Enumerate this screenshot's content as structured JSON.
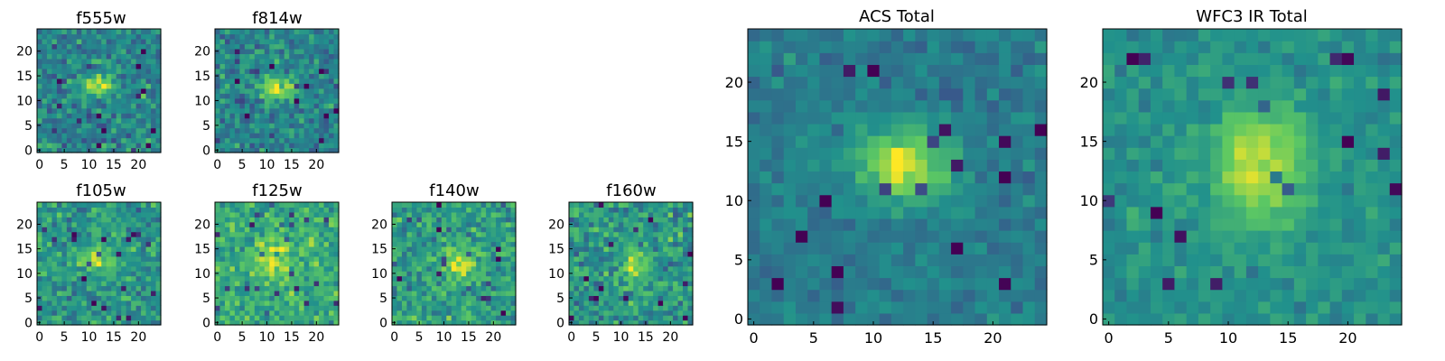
{
  "figure": {
    "colormap": "viridis",
    "colormap_stops": [
      "#440154",
      "#3b528b",
      "#21918c",
      "#5ec962",
      "#fde725"
    ],
    "panel_count": 8
  },
  "chart_data": [
    {
      "type": "heatmap",
      "title": "f555w",
      "grid": false,
      "xlim": [
        0,
        24
      ],
      "ylim": [
        0,
        24
      ],
      "xticks": [
        0,
        5,
        10,
        15,
        20
      ],
      "yticks": [
        0,
        5,
        10,
        15,
        20
      ],
      "xtick_labels": [
        "0",
        "5",
        "10",
        "15",
        "20"
      ],
      "ytick_labels": [
        "0",
        "5",
        "10",
        "15",
        "20"
      ],
      "source_center": [
        12,
        13
      ],
      "source_size": [
        2.2,
        1.5
      ],
      "source_peak": 0.55,
      "noise_level": 0.6,
      "background": 0.45,
      "colormap": "viridis"
    },
    {
      "type": "heatmap",
      "title": "f814w",
      "grid": false,
      "xlim": [
        0,
        24
      ],
      "ylim": [
        0,
        24
      ],
      "xticks": [
        0,
        5,
        10,
        15,
        20
      ],
      "yticks": [
        0,
        5,
        10,
        15,
        20
      ],
      "xtick_labels": [
        "0",
        "5",
        "10",
        "15",
        "20"
      ],
      "ytick_labels": [
        "0",
        "5",
        "10",
        "15",
        "20"
      ],
      "source_center": [
        12.5,
        12.5
      ],
      "source_size": [
        2.5,
        1.6
      ],
      "source_peak": 0.5,
      "noise_level": 0.55,
      "background": 0.45,
      "colormap": "viridis"
    },
    {
      "type": "heatmap",
      "title": "f105w",
      "grid": false,
      "xlim": [
        0,
        24
      ],
      "ylim": [
        0,
        24
      ],
      "xticks": [
        0,
        5,
        10,
        15,
        20
      ],
      "yticks": [
        0,
        5,
        10,
        15,
        20
      ],
      "xtick_labels": [
        "0",
        "5",
        "10",
        "15",
        "20"
      ],
      "ytick_labels": [
        "0",
        "5",
        "10",
        "15",
        "20"
      ],
      "source_center": [
        11.5,
        13
      ],
      "source_size": [
        2.4,
        1.5
      ],
      "source_peak": 0.4,
      "noise_level": 0.55,
      "background": 0.52,
      "colormap": "viridis"
    },
    {
      "type": "heatmap",
      "title": "f125w",
      "grid": false,
      "xlim": [
        0,
        24
      ],
      "ylim": [
        0,
        24
      ],
      "xticks": [
        0,
        5,
        10,
        15,
        20
      ],
      "yticks": [
        0,
        5,
        10,
        15,
        20
      ],
      "xtick_labels": [
        "0",
        "5",
        "10",
        "15",
        "20"
      ],
      "ytick_labels": [
        "0",
        "5",
        "10",
        "15",
        "20"
      ],
      "source_center": [
        12,
        13
      ],
      "source_size": [
        3,
        3
      ],
      "source_peak": 0.3,
      "noise_level": 0.55,
      "background": 0.6,
      "colormap": "viridis"
    },
    {
      "type": "heatmap",
      "title": "f140w",
      "grid": false,
      "xlim": [
        0,
        24
      ],
      "ylim": [
        0,
        24
      ],
      "xticks": [
        0,
        5,
        10,
        15,
        20
      ],
      "yticks": [
        0,
        5,
        10,
        15,
        20
      ],
      "xtick_labels": [
        "0",
        "5",
        "10",
        "15",
        "20"
      ],
      "ytick_labels": [
        "0",
        "5",
        "10",
        "15",
        "20"
      ],
      "source_center": [
        13.5,
        13
      ],
      "source_size": [
        2.5,
        2.5
      ],
      "source_peak": 0.3,
      "noise_level": 0.6,
      "background": 0.55,
      "colormap": "viridis"
    },
    {
      "type": "heatmap",
      "title": "f160w",
      "grid": false,
      "xlim": [
        0,
        24
      ],
      "ylim": [
        0,
        24
      ],
      "xticks": [
        0,
        5,
        10,
        15,
        20
      ],
      "yticks": [
        0,
        5,
        10,
        15,
        20
      ],
      "xtick_labels": [
        "0",
        "5",
        "10",
        "15",
        "20"
      ],
      "ytick_labels": [
        "0",
        "5",
        "10",
        "15",
        "20"
      ],
      "source_center": [
        12.5,
        12
      ],
      "source_size": [
        1.5,
        3
      ],
      "source_peak": 0.35,
      "noise_level": 0.6,
      "background": 0.52,
      "colormap": "viridis"
    },
    {
      "type": "heatmap",
      "title": "ACS Total",
      "grid": false,
      "xlim": [
        0,
        24
      ],
      "ylim": [
        0,
        24
      ],
      "xticks": [
        0,
        5,
        10,
        15,
        20
      ],
      "yticks": [
        0,
        5,
        10,
        15,
        20
      ],
      "xtick_labels": [
        "0",
        "5",
        "10",
        "15",
        "20"
      ],
      "ytick_labels": [
        "0",
        "5",
        "10",
        "15",
        "20"
      ],
      "source_center": [
        12.5,
        13
      ],
      "source_size": [
        2.8,
        2.0
      ],
      "source_peak": 0.55,
      "noise_level": 0.3,
      "background": 0.42,
      "colormap": "viridis"
    },
    {
      "type": "heatmap",
      "title": "WFC3 IR Total",
      "grid": false,
      "xlim": [
        0,
        24
      ],
      "ylim": [
        0,
        24
      ],
      "xticks": [
        0,
        5,
        10,
        15,
        20
      ],
      "yticks": [
        0,
        5,
        10,
        15,
        20
      ],
      "xtick_labels": [
        "0",
        "5",
        "10",
        "15",
        "20"
      ],
      "ytick_labels": [
        "0",
        "5",
        "10",
        "15",
        "20"
      ],
      "source_center": [
        12.5,
        13
      ],
      "source_size": [
        2.8,
        3.5
      ],
      "source_peak": 0.42,
      "noise_level": 0.3,
      "background": 0.5,
      "colormap": "viridis"
    }
  ]
}
